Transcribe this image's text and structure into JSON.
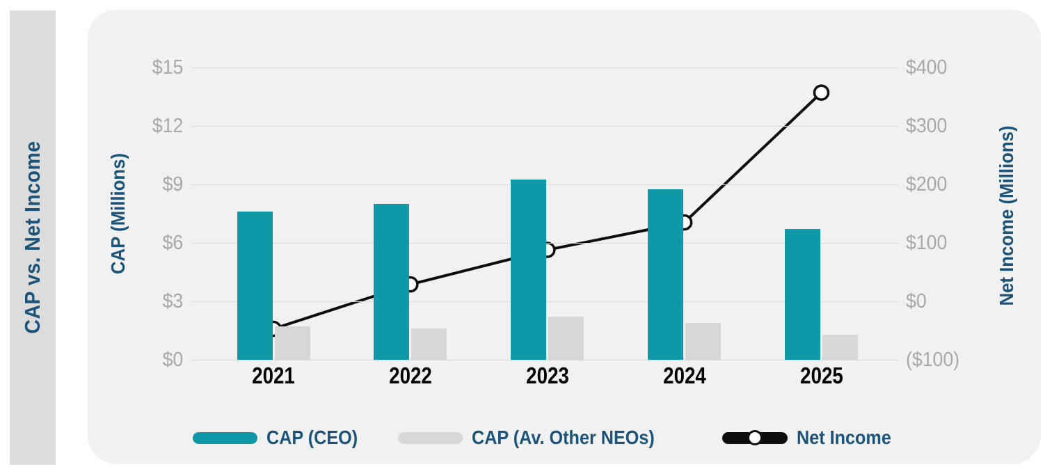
{
  "sidebar": {
    "title": "CAP vs. Net Income"
  },
  "colors": {
    "accent_teal": "#0f98a8",
    "bar_gray": "#d7d7d7",
    "line_black": "#0d0d0d",
    "heading_blue": "#1b5379",
    "tick_gray": "#a8a8a8",
    "gridline_gray": "#d9d9da",
    "panel_bg": "#f1f1f2",
    "sidebar_bg": "#dcdcdc"
  },
  "chart_data": {
    "type": "bar",
    "subtype": "grouped-bar-with-line-dual-axis",
    "title": "CAP vs. Net Income",
    "categories": [
      "2021",
      "2022",
      "2023",
      "2024",
      "2025"
    ],
    "series": [
      {
        "name": "CAP (CEO)",
        "type": "bar",
        "axis": "left",
        "color": "#0f98a8",
        "values": [
          7.6,
          8.0,
          9.25,
          8.75,
          6.7
        ]
      },
      {
        "name": "CAP (Av. Other NEOs)",
        "type": "bar",
        "axis": "left",
        "color": "#d7d7d7",
        "values": [
          1.7,
          1.6,
          2.2,
          1.9,
          1.3
        ]
      },
      {
        "name": "Net Income",
        "type": "line",
        "axis": "right",
        "color": "#0d0d0d",
        "marker": "open-circle",
        "values": [
          -47,
          29,
          88,
          135,
          357
        ]
      }
    ],
    "left_axis": {
      "title": "CAP (Millions)",
      "range": [
        0,
        15
      ],
      "ticks": [
        {
          "value": 15,
          "label": "$15"
        },
        {
          "value": 12,
          "label": "$12"
        },
        {
          "value": 9,
          "label": "$9"
        },
        {
          "value": 6,
          "label": "$6"
        },
        {
          "value": 3,
          "label": "$3"
        },
        {
          "value": 0,
          "label": "$0"
        }
      ]
    },
    "right_axis": {
      "title": "Net Income (Millions)",
      "range": [
        -100,
        400
      ],
      "ticks": [
        {
          "value": 400,
          "label": "$400"
        },
        {
          "value": 300,
          "label": "$300"
        },
        {
          "value": 200,
          "label": "$200"
        },
        {
          "value": 100,
          "label": "$100"
        },
        {
          "value": 0,
          "label": "$0"
        },
        {
          "value": -100,
          "label": "($100)"
        }
      ]
    },
    "grid": true,
    "legend_position": "bottom"
  }
}
